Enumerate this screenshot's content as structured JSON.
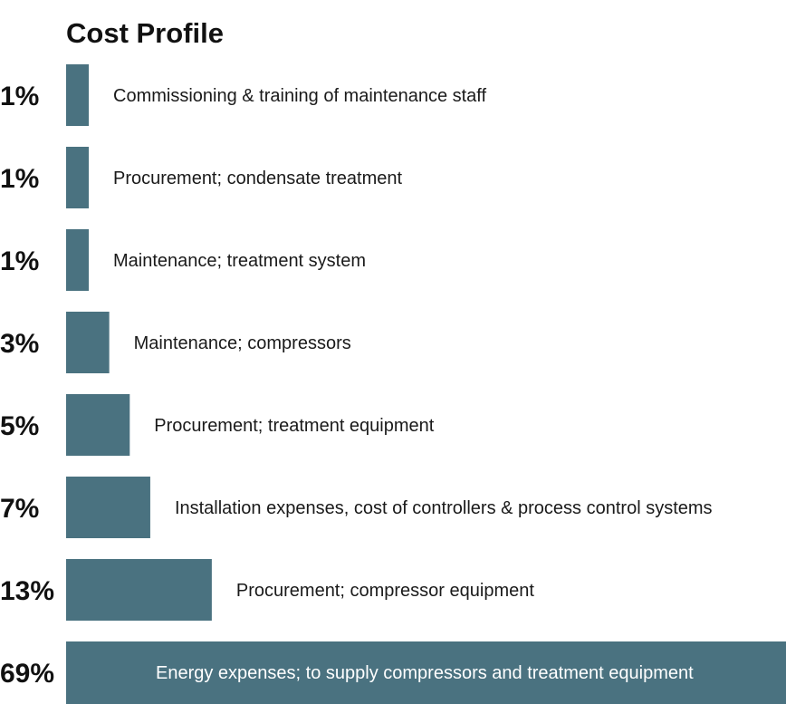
{
  "chart_data": {
    "type": "bar",
    "orientation": "horizontal",
    "title": "Cost Profile",
    "xlabel": "",
    "ylabel": "",
    "xlim": [
      0,
      69
    ],
    "grid": false,
    "bar_color": "#4a7280",
    "categories": [
      "Commissioning & training of maintenance staff",
      "Procurement; condensate treatment",
      "Maintenance; treatment system",
      "Maintenance; compressors",
      "Procurement; treatment equipment",
      "Installation expenses, cost of controllers & process control systems",
      "Procurement; compressor equipment",
      "Energy expenses; to supply compressors and treatment equipment"
    ],
    "values": [
      1,
      1,
      1,
      3,
      5,
      7,
      13,
      69
    ],
    "value_labels": [
      "1%",
      "1%",
      "1%",
      "3%",
      "5%",
      "7%",
      "13%",
      "69%"
    ]
  }
}
